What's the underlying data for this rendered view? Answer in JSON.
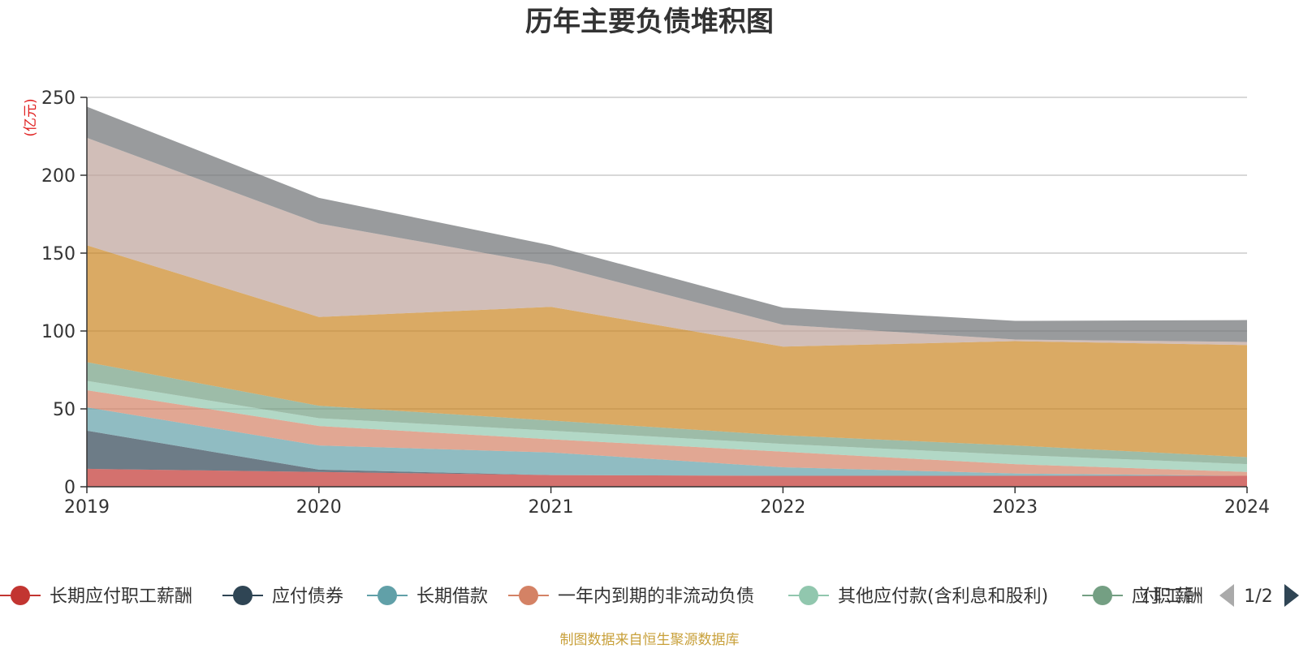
{
  "chart_data": {
    "type": "area",
    "stacked": true,
    "title": "历年主要负债堆积图",
    "unit_label": "(亿元)",
    "x": [
      "2019",
      "2020",
      "2021",
      "2022",
      "2023",
      "2024"
    ],
    "ylim": [
      0,
      250
    ],
    "yticks": [
      "0",
      "50",
      "100",
      "150",
      "200",
      "250"
    ],
    "grid": true,
    "legend_position": "bottom",
    "series": [
      {
        "name": "长期应付职工薪酬",
        "color": "#c23531",
        "values": [
          11.5,
          9.5,
          7.5,
          7,
          7,
          7
        ]
      },
      {
        "name": "应付债券",
        "color": "#2f4554",
        "values": [
          24.5,
          1.5,
          0,
          0,
          0,
          0
        ]
      },
      {
        "name": "长期借款",
        "color": "#61a0a8",
        "values": [
          15,
          15.5,
          14.5,
          5.5,
          1.5,
          0
        ]
      },
      {
        "name": "一年内到期的非流动负债",
        "color": "#d48265",
        "values": [
          11,
          12.5,
          8.5,
          10,
          6,
          2.5
        ]
      },
      {
        "name": "其他应付款(含利息和股利)",
        "color": "#91c7ae",
        "values": [
          6,
          5,
          5.5,
          5,
          6,
          5
        ]
      },
      {
        "name": "应付职工薪酬",
        "color": "#749f83",
        "values": [
          12,
          8,
          6.5,
          5.5,
          6,
          4.5
        ]
      },
      {
        "name": "",
        "color": "#ca8622",
        "values": [
          75,
          57,
          73,
          57,
          67,
          72
        ]
      },
      {
        "name": "",
        "color": "#bda29a",
        "values": [
          69,
          60,
          27,
          14,
          1,
          2
        ]
      },
      {
        "name": "",
        "color": "#6e7074",
        "values": [
          20,
          16.5,
          12.5,
          11,
          12,
          14
        ]
      }
    ],
    "legend_visible_count": 6,
    "legend_page": "1/2"
  },
  "source_note": "制图数据来自恒生聚源数据库"
}
